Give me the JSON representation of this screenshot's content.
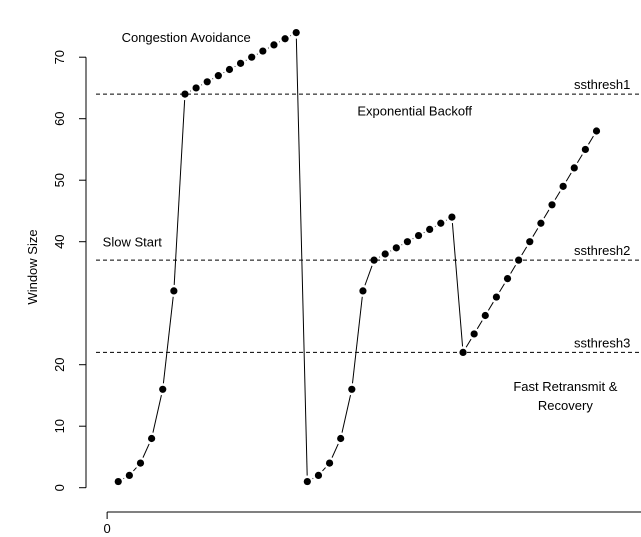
{
  "chart_data": {
    "type": "line",
    "ylabel": "Window Size",
    "xlabel": "",
    "title": "",
    "ylim": [
      -2,
      78
    ],
    "xlim": [
      -1,
      48
    ],
    "x_ticks": [
      {
        "value": 0,
        "label": "0"
      }
    ],
    "y_ticks": [
      {
        "value": 0,
        "label": "0"
      },
      {
        "value": 10,
        "label": "10"
      },
      {
        "value": 20,
        "label": "20"
      },
      {
        "value": 40,
        "label": "40"
      },
      {
        "value": 50,
        "label": "50"
      },
      {
        "value": 60,
        "label": "60"
      },
      {
        "value": 70,
        "label": "70"
      }
    ],
    "grid": false,
    "series": [
      {
        "color": "#000000",
        "points": [
          [
            1,
            1
          ],
          [
            2,
            2
          ],
          [
            3,
            4
          ],
          [
            4,
            8
          ],
          [
            5,
            16
          ],
          [
            6,
            32
          ],
          [
            7,
            64
          ],
          [
            8,
            65
          ],
          [
            9,
            66
          ],
          [
            10,
            67
          ],
          [
            11,
            68
          ],
          [
            12,
            69
          ],
          [
            13,
            70
          ],
          [
            14,
            71
          ],
          [
            15,
            72
          ],
          [
            16,
            73
          ],
          [
            17,
            74
          ],
          [
            18,
            1
          ],
          [
            19,
            2
          ],
          [
            20,
            4
          ],
          [
            21,
            8
          ],
          [
            22,
            16
          ],
          [
            23,
            32
          ],
          [
            24,
            37
          ],
          [
            25,
            38
          ],
          [
            26,
            39
          ],
          [
            27,
            40
          ],
          [
            28,
            41
          ],
          [
            29,
            42
          ],
          [
            30,
            43
          ],
          [
            31,
            44
          ],
          [
            32,
            22
          ],
          [
            33,
            25
          ],
          [
            34,
            28
          ],
          [
            35,
            31
          ],
          [
            36,
            34
          ],
          [
            37,
            37
          ],
          [
            38,
            40
          ],
          [
            39,
            43
          ],
          [
            40,
            46
          ],
          [
            41,
            49
          ],
          [
            42,
            52
          ],
          [
            43,
            55
          ],
          [
            44,
            58
          ]
        ]
      }
    ],
    "thresholds": [
      {
        "value": 64,
        "label": "ssthresh1"
      },
      {
        "value": 37,
        "label": "ssthresh2"
      },
      {
        "value": 22,
        "label": "ssthresh3"
      }
    ],
    "annotations": [
      {
        "text": "Congestion Avoidance",
        "x": 1.3,
        "y": 72.5
      },
      {
        "text": "Exponential Backoff",
        "x": 22.5,
        "y": 60.5
      },
      {
        "text": "Slow Start",
        "x": -0.4,
        "y": 39.2
      },
      {
        "text": "Fast Retransmit &",
        "x": 41.2,
        "y": 15.7,
        "align": "middle"
      },
      {
        "text": "Recovery",
        "x": 41.2,
        "y": 12.6,
        "align": "middle"
      }
    ]
  }
}
